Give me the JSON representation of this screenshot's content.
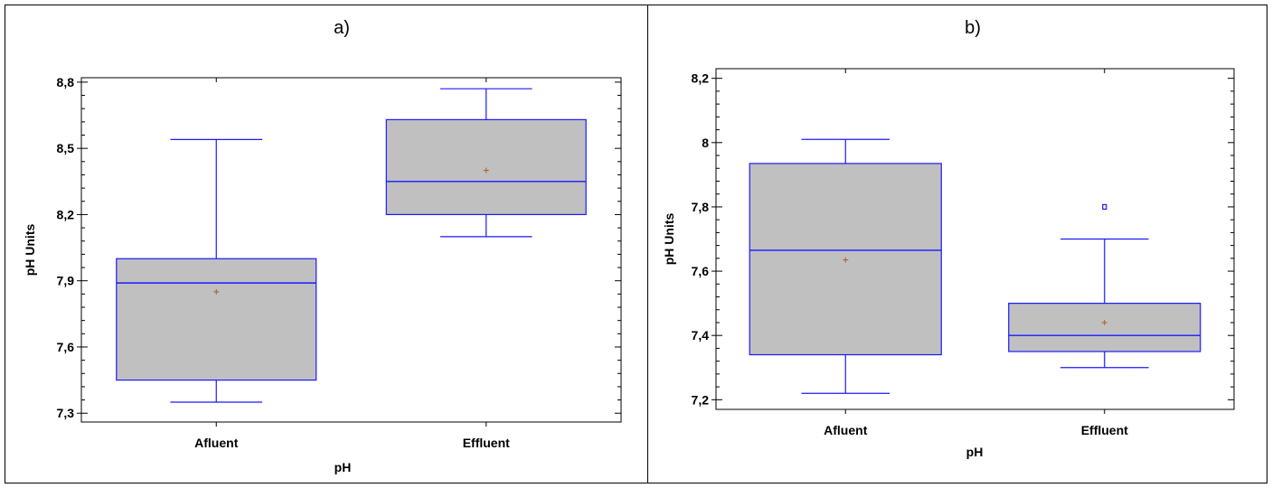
{
  "panels": [
    {
      "label": "a)"
    },
    {
      "label": "b)"
    }
  ],
  "colors": {
    "box_fill": "#c0c0c0",
    "box_stroke": "#1a1aff",
    "mean_marker": "#b35a1f",
    "outlier": "#1a1aff",
    "axis": "#000000"
  },
  "chart_data": [
    {
      "type": "box",
      "title": "a)",
      "xlabel": "pH",
      "ylabel": "pH Units",
      "categories": [
        "Afluent",
        "Effluent"
      ],
      "ylim": [
        7.26,
        8.82
      ],
      "yticks": [
        7.3,
        7.6,
        7.9,
        8.2,
        8.5,
        8.8
      ],
      "ytick_labels": [
        "7,3",
        "7,6",
        "7,9",
        "8,2",
        "8,5",
        "8,8"
      ],
      "boxes": [
        {
          "name": "Afluent",
          "min": 7.35,
          "q1": 7.45,
          "median": 7.89,
          "q3": 8.0,
          "max": 8.54,
          "mean": 7.85,
          "outliers": []
        },
        {
          "name": "Effluent",
          "min": 8.1,
          "q1": 8.2,
          "median": 8.35,
          "q3": 8.63,
          "max": 8.77,
          "mean": 8.4,
          "outliers": []
        }
      ],
      "grid": false
    },
    {
      "type": "box",
      "title": "b)",
      "xlabel": "pH",
      "ylabel": "pH Units",
      "categories": [
        "Afluent",
        "Effluent"
      ],
      "ylim": [
        7.17,
        8.23
      ],
      "yticks": [
        7.2,
        7.4,
        7.6,
        7.8,
        8.0,
        8.2
      ],
      "ytick_labels": [
        "7,2",
        "7,4",
        "7,6",
        "7,8",
        "8",
        "8,2"
      ],
      "boxes": [
        {
          "name": "Afluent",
          "min": 7.22,
          "q1": 7.34,
          "median": 7.665,
          "q3": 7.935,
          "max": 8.01,
          "mean": 7.635,
          "outliers": []
        },
        {
          "name": "Effluent",
          "min": 7.3,
          "q1": 7.35,
          "median": 7.4,
          "q3": 7.5,
          "max": 7.7,
          "mean": 7.44,
          "outliers": [
            7.8
          ]
        }
      ],
      "grid": false
    }
  ]
}
